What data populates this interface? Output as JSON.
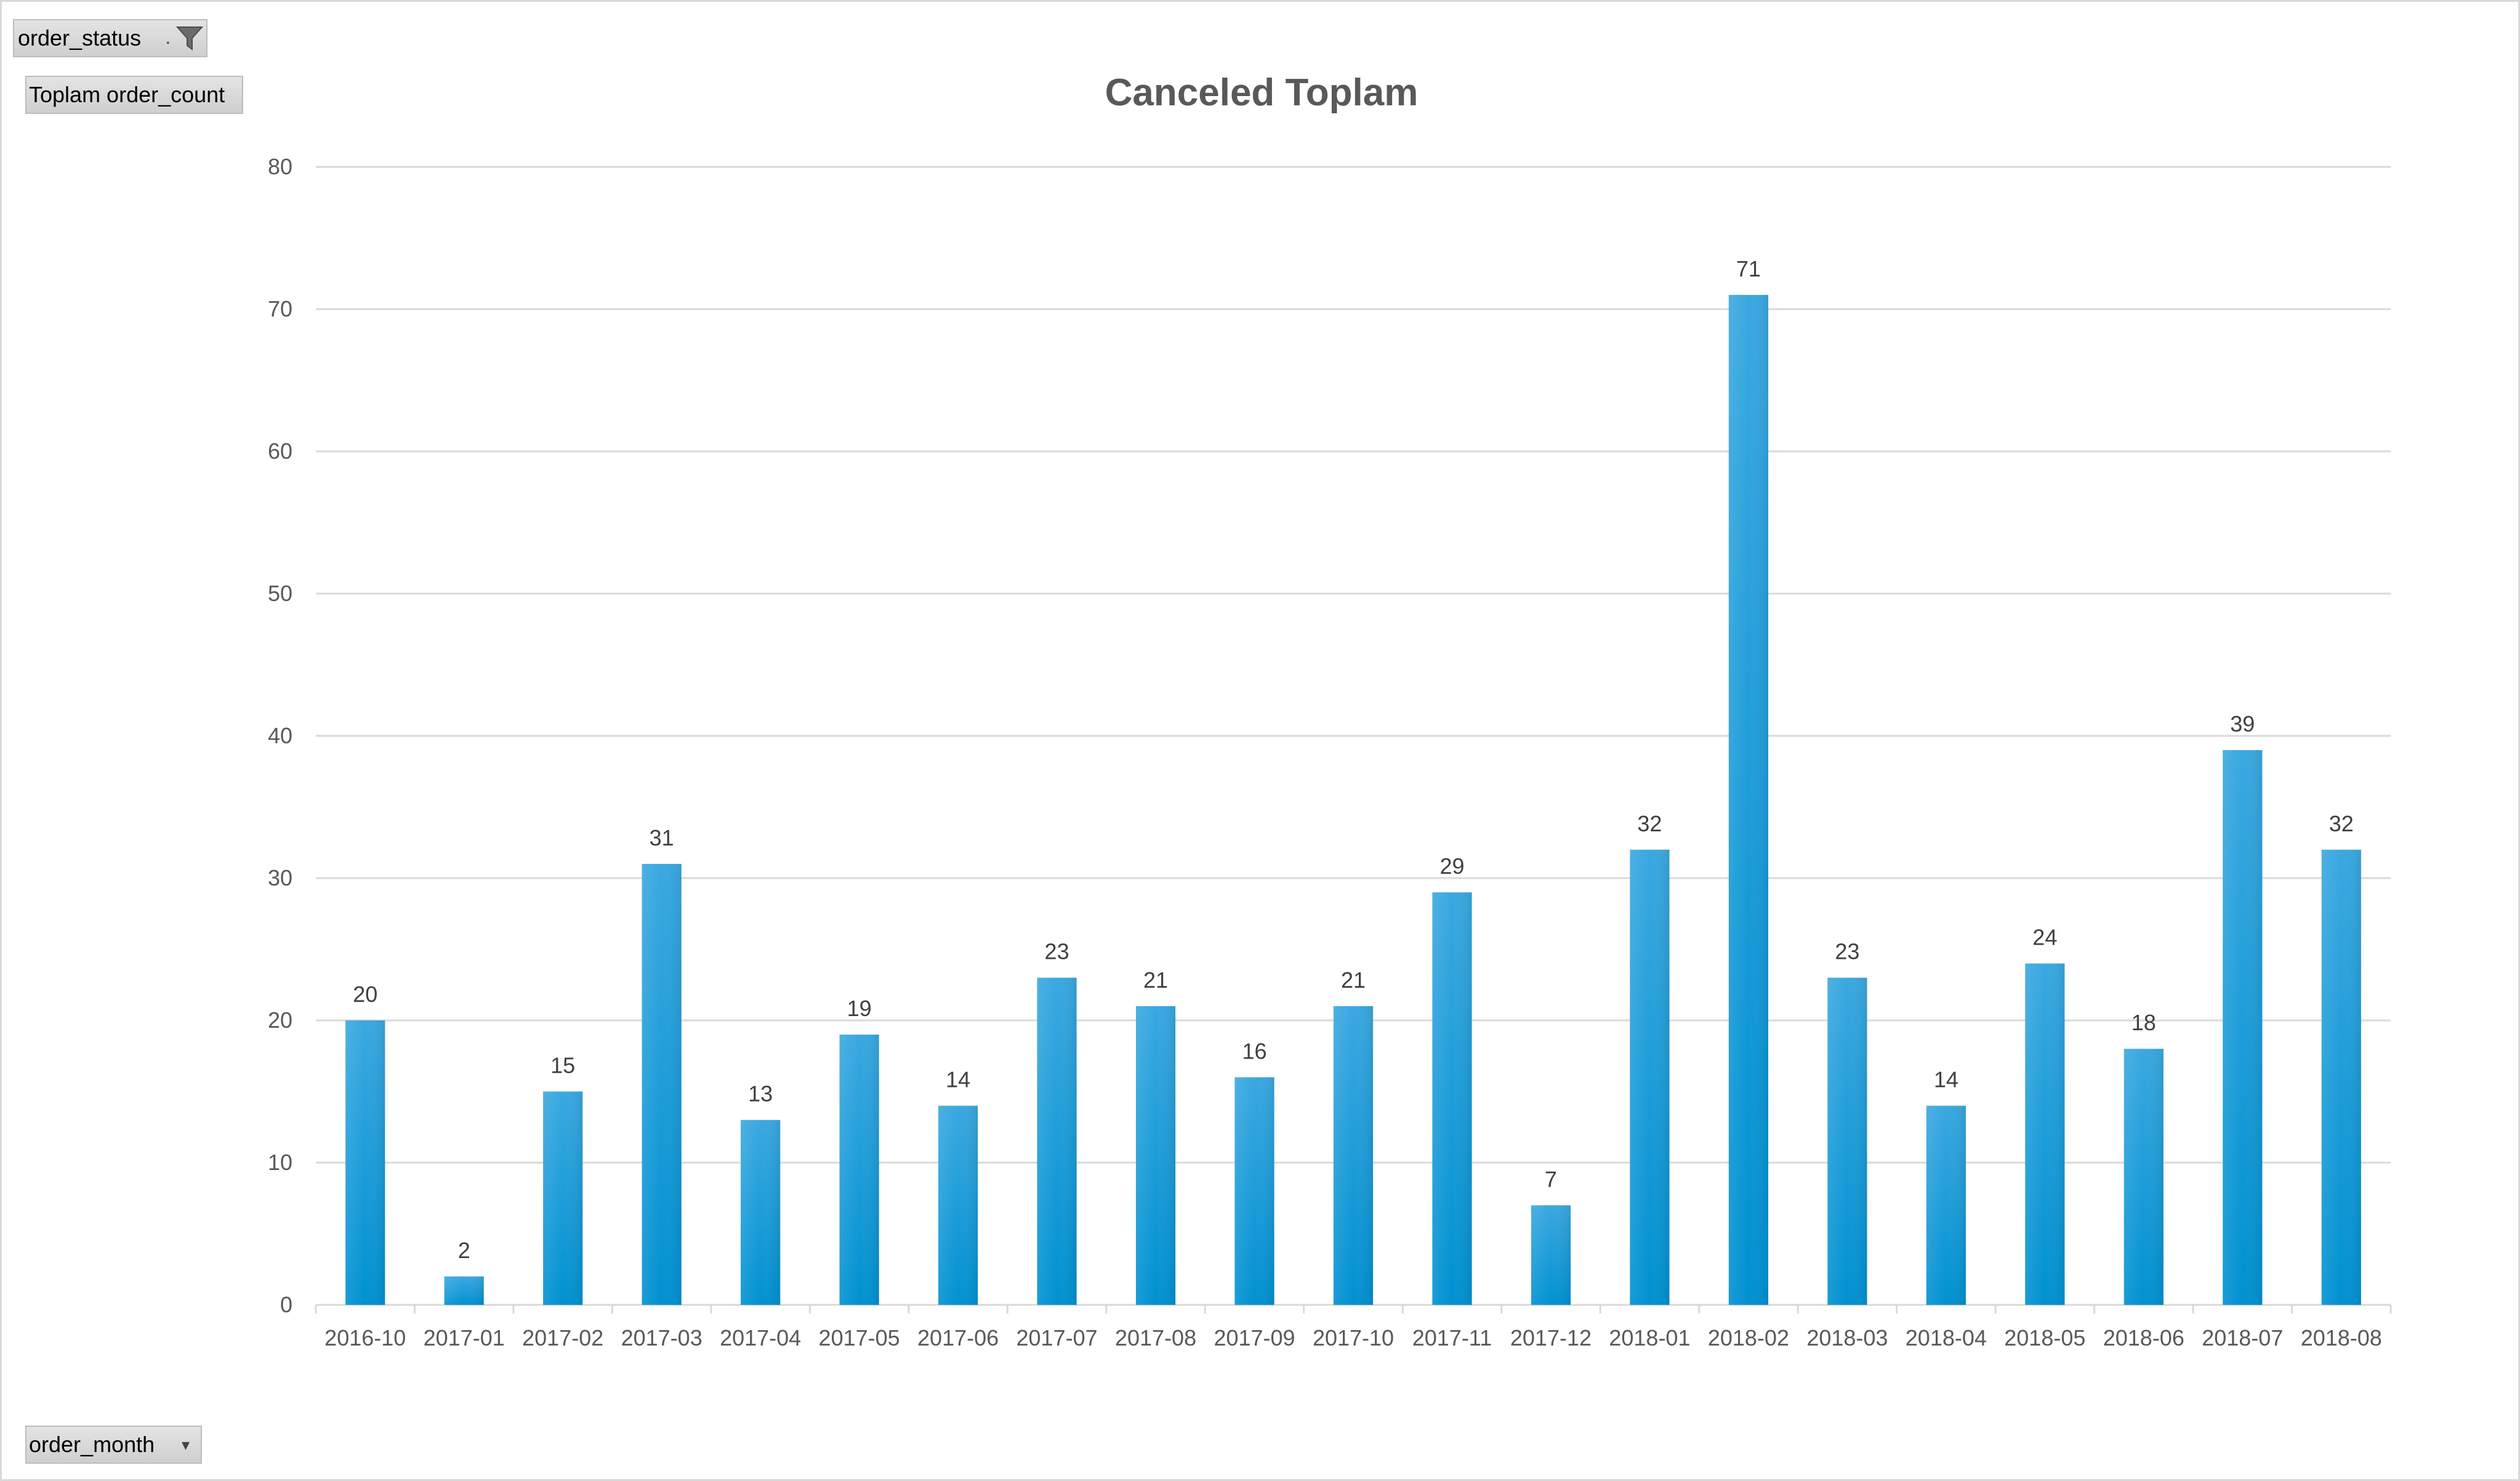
{
  "pivot": {
    "filter_field": "order_status",
    "value_field": "Toplam order_count",
    "axis_field": "order_month"
  },
  "icons": {
    "filter": "funnel-filter-icon",
    "dropdown": "dropdown-arrow-icon"
  },
  "colors": {
    "bar_top": "#3aa8e0",
    "bar_bottom": "#0091d1",
    "gridline": "#d9d9d9",
    "text": "#595959"
  },
  "chart_data": {
    "type": "bar",
    "title": "Canceled Toplam",
    "xlabel": "",
    "ylabel": "",
    "ylim": [
      0,
      80
    ],
    "yticks": [
      0,
      10,
      20,
      30,
      40,
      50,
      60,
      70,
      80
    ],
    "grid": true,
    "legend": "none",
    "data_labels": true,
    "categories": [
      "2016-10",
      "2017-01",
      "2017-02",
      "2017-03",
      "2017-04",
      "2017-05",
      "2017-06",
      "2017-07",
      "2017-08",
      "2017-09",
      "2017-10",
      "2017-11",
      "2017-12",
      "2018-01",
      "2018-02",
      "2018-03",
      "2018-04",
      "2018-05",
      "2018-06",
      "2018-07",
      "2018-08"
    ],
    "values": [
      20,
      2,
      15,
      31,
      13,
      19,
      14,
      23,
      21,
      16,
      21,
      29,
      7,
      32,
      71,
      23,
      14,
      24,
      18,
      39,
      32
    ]
  }
}
